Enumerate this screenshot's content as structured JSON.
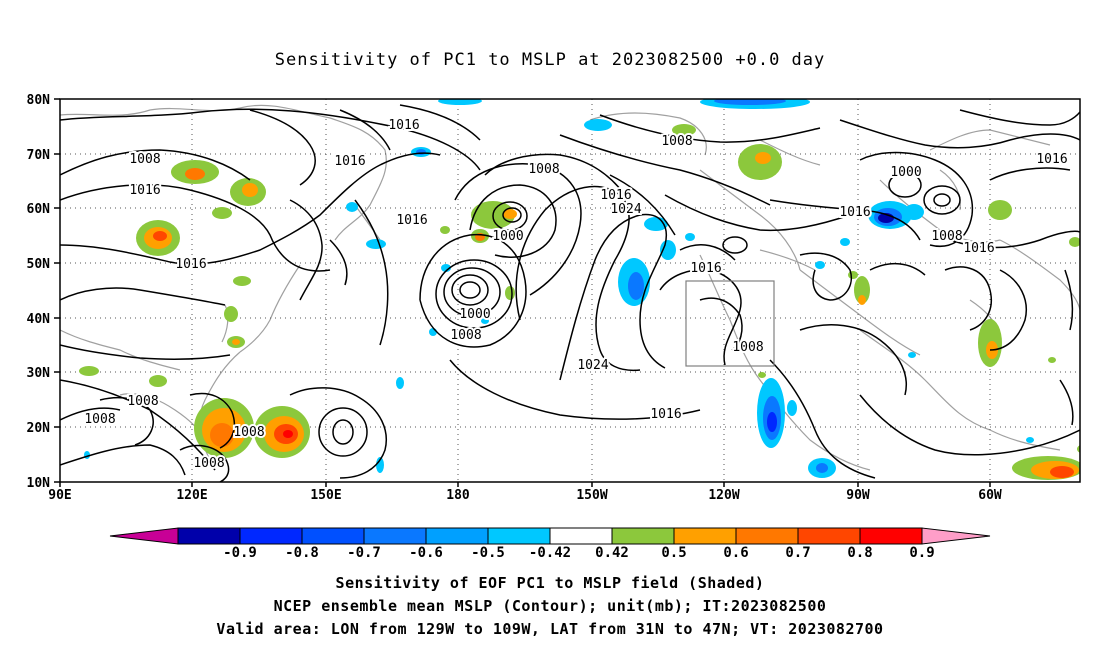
{
  "title": "Sensitivity of PC1 to MSLP at 2023082500 +0.0 day",
  "map": {
    "lat_ticks": [
      "80N",
      "70N",
      "60N",
      "50N",
      "40N",
      "30N",
      "20N",
      "10N"
    ],
    "lon_ticks": [
      "90E",
      "120E",
      "150E",
      "180",
      "150W",
      "120W",
      "90W",
      "60W"
    ],
    "grid": "dotted",
    "domain": {
      "lon_range": [
        "90E",
        "50W"
      ],
      "lat_range": [
        "10N",
        "80N"
      ]
    },
    "valid_area_box": {
      "lon_from": "129W",
      "lon_to": "109W",
      "lat_from": "31N",
      "lat_to": "47N"
    },
    "contour_labels": [
      {
        "id": "c1",
        "text": "1016"
      },
      {
        "id": "c2",
        "text": "1008"
      },
      {
        "id": "c3",
        "text": "1016"
      },
      {
        "id": "c4",
        "text": "1008"
      },
      {
        "id": "c5",
        "text": "1016"
      },
      {
        "id": "c6",
        "text": "1016"
      },
      {
        "id": "c7",
        "text": "1016"
      },
      {
        "id": "c8",
        "text": "1008"
      },
      {
        "id": "c9",
        "text": "1016"
      },
      {
        "id": "c10",
        "text": "1024"
      },
      {
        "id": "c11",
        "text": "1000"
      },
      {
        "id": "c12",
        "text": "1000"
      },
      {
        "id": "c13",
        "text": "1008"
      },
      {
        "id": "c14",
        "text": "1016"
      },
      {
        "id": "c15",
        "text": "1000"
      },
      {
        "id": "c16",
        "text": "1016"
      },
      {
        "id": "c17",
        "text": "1008"
      },
      {
        "id": "c18",
        "text": "1016"
      },
      {
        "id": "c19",
        "text": "1008"
      },
      {
        "id": "c20",
        "text": "1024"
      },
      {
        "id": "c21",
        "text": "1016"
      },
      {
        "id": "c22",
        "text": "1008"
      },
      {
        "id": "c23",
        "text": "1008"
      },
      {
        "id": "c24",
        "text": "1008"
      },
      {
        "id": "c25",
        "text": "1008"
      },
      {
        "id": "c26",
        "text": "1016"
      }
    ]
  },
  "colorbar": {
    "labels": [
      "-0.9",
      "-0.8",
      "-0.7",
      "-0.6",
      "-0.5",
      "-0.42",
      "0.42",
      "0.5",
      "0.6",
      "0.7",
      "0.8",
      "0.9"
    ],
    "colors": [
      "#0000aa",
      "#0028ff",
      "#0050ff",
      "#0a78ff",
      "#00a0ff",
      "#00c8ff",
      "#ffffff",
      "#8cc83c",
      "#ffa000",
      "#ff7800",
      "#ff4600",
      "#ff0000"
    ],
    "low_end_color": "#c80096",
    "high_end_color": "#ff9ec8"
  },
  "footer": {
    "line1": "Sensitivity of EOF PC1 to MSLP field (Shaded)",
    "line2": "NCEP ensemble mean MSLP (Contour); unit(mb); IT:2023082500",
    "line3": "Valid area: LON from 129W to 109W, LAT from 31N to 47N; VT: 2023082700"
  }
}
